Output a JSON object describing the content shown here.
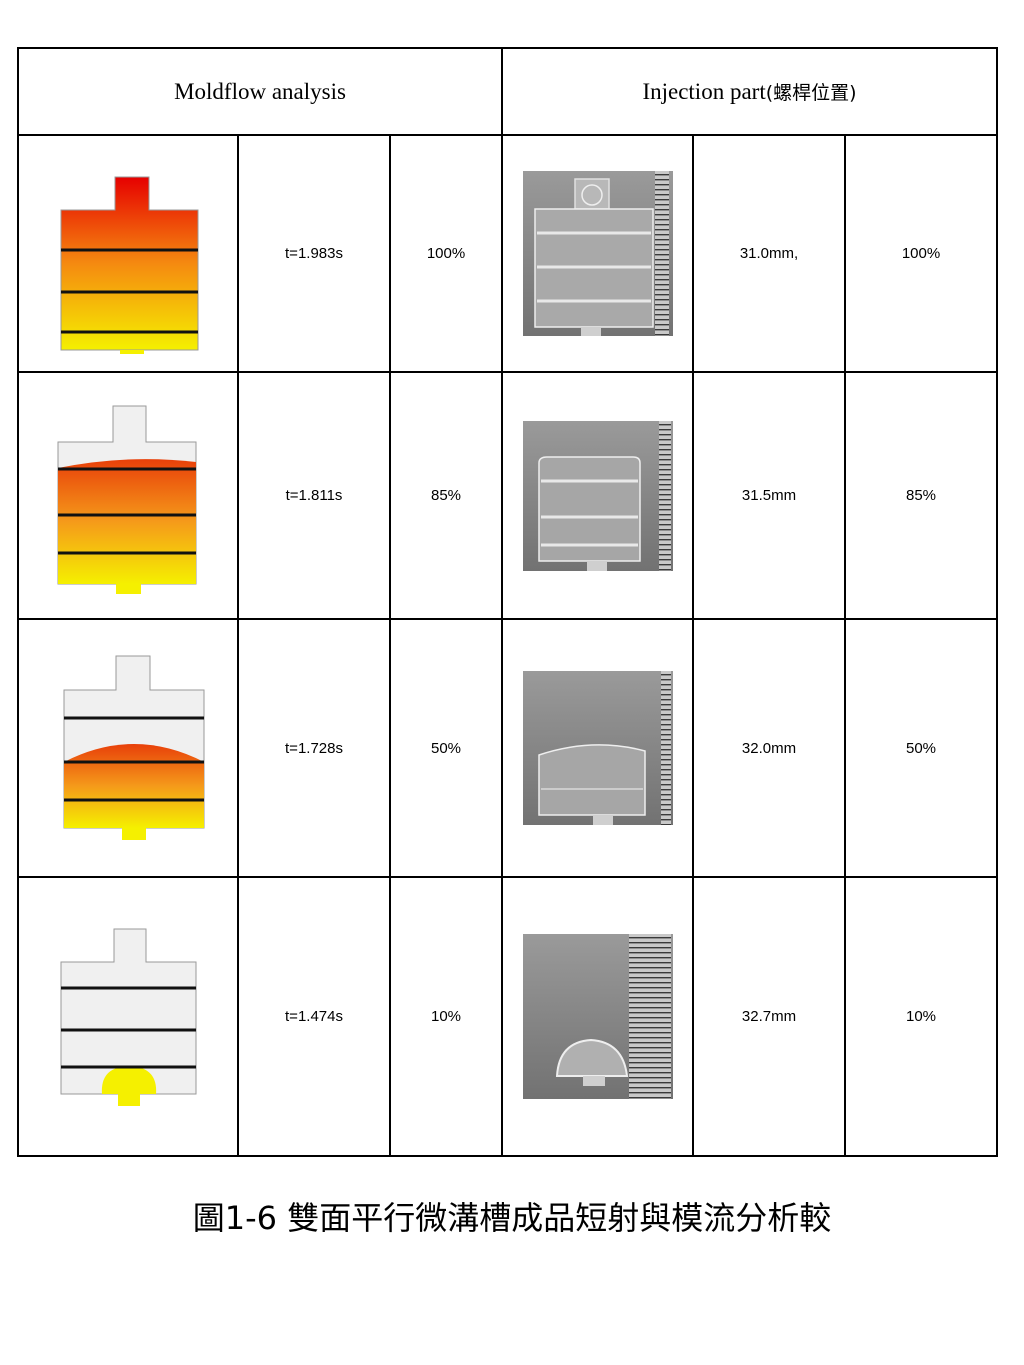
{
  "header": {
    "moldflow": "Moldflow analysis",
    "injection": "Injection part",
    "injection_cn": "(螺桿位置)"
  },
  "rows": [
    {
      "time": "t=1.983s",
      "mold_pct": "100%",
      "position": "31.0mm,",
      "part_pct": "100%"
    },
    {
      "time": "t=1.811s",
      "mold_pct": "85%",
      "position": "31.5mm",
      "part_pct": "85%"
    },
    {
      "time": "t=1.728s",
      "mold_pct": "50%",
      "position": "32.0mm",
      "part_pct": "50%"
    },
    {
      "time": "t=1.474s",
      "mold_pct": "10%",
      "position": "32.7mm",
      "part_pct": "10%"
    }
  ],
  "caption": "圖1-6 雙面平行微溝槽成品短射與模流分析較"
}
